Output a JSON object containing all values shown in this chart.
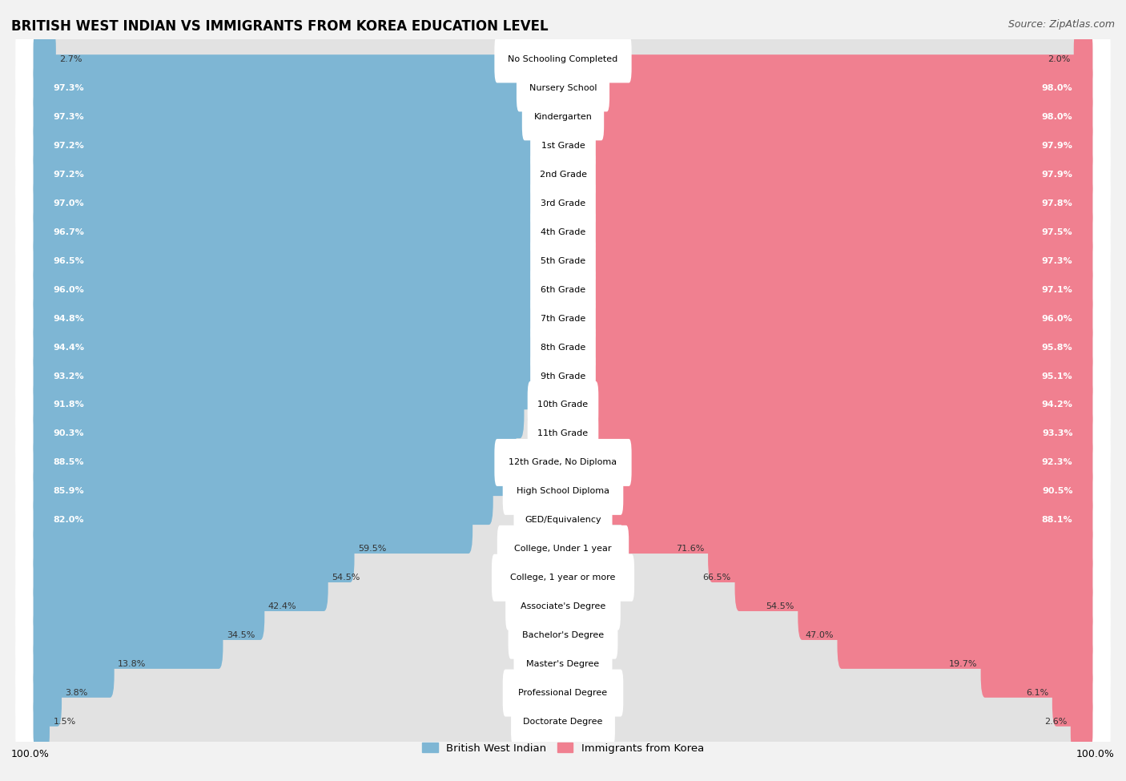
{
  "title": "BRITISH WEST INDIAN VS IMMIGRANTS FROM KOREA EDUCATION LEVEL",
  "source": "Source: ZipAtlas.com",
  "categories": [
    "No Schooling Completed",
    "Nursery School",
    "Kindergarten",
    "1st Grade",
    "2nd Grade",
    "3rd Grade",
    "4th Grade",
    "5th Grade",
    "6th Grade",
    "7th Grade",
    "8th Grade",
    "9th Grade",
    "10th Grade",
    "11th Grade",
    "12th Grade, No Diploma",
    "High School Diploma",
    "GED/Equivalency",
    "College, Under 1 year",
    "College, 1 year or more",
    "Associate's Degree",
    "Bachelor's Degree",
    "Master's Degree",
    "Professional Degree",
    "Doctorate Degree"
  ],
  "british_west_indian": [
    2.7,
    97.3,
    97.3,
    97.2,
    97.2,
    97.0,
    96.7,
    96.5,
    96.0,
    94.8,
    94.4,
    93.2,
    91.8,
    90.3,
    88.5,
    85.9,
    82.0,
    59.5,
    54.5,
    42.4,
    34.5,
    13.8,
    3.8,
    1.5
  ],
  "immigrants_korea": [
    2.0,
    98.0,
    98.0,
    97.9,
    97.9,
    97.8,
    97.5,
    97.3,
    97.1,
    96.0,
    95.8,
    95.1,
    94.2,
    93.3,
    92.3,
    90.5,
    88.1,
    71.6,
    66.5,
    54.5,
    47.0,
    19.7,
    6.1,
    2.6
  ],
  "blue_color": "#7eb6d4",
  "pink_color": "#f08090",
  "bg_color": "#f2f2f2",
  "bar_bg_color": "#e2e2e2",
  "row_bg_color": "#ffffff",
  "legend_blue": "British West Indian",
  "legend_pink": "Immigrants from Korea",
  "left_label": "100.0%",
  "right_label": "100.0%"
}
